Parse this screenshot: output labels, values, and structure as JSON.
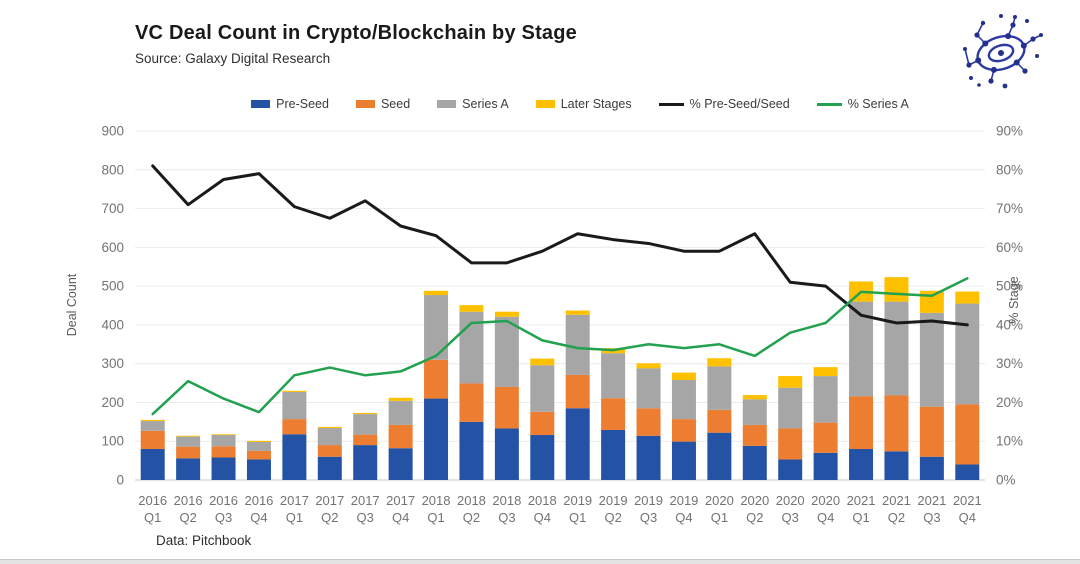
{
  "header": {
    "title": "VC Deal Count in Crypto/Blockchain by Stage",
    "source": "Source: Galaxy Digital Research"
  },
  "footer": {
    "note": "Data: Pitchbook"
  },
  "logo": {
    "icon": "network-globe-logo",
    "color": "#2b3a9e"
  },
  "legend": {
    "items": [
      {
        "label": "Pre-Seed",
        "color": "#2453a6",
        "marker": "rect"
      },
      {
        "label": "Seed",
        "color": "#ed7d31",
        "marker": "rect"
      },
      {
        "label": "Series A",
        "color": "#a6a6a6",
        "marker": "rect"
      },
      {
        "label": "Later Stages",
        "color": "#ffc000",
        "marker": "rect"
      },
      {
        "label": "% Pre-Seed/Seed",
        "color": "#1a1a1a",
        "marker": "line"
      },
      {
        "label": "% Series A",
        "color": "#22a14f",
        "marker": "line"
      }
    ]
  },
  "chart_data": {
    "type": "bar",
    "subtype": "stacked-bar-with-lines",
    "title": "VC Deal Count in Crypto/Blockchain by Stage",
    "categories": [
      "2016 Q1",
      "2016 Q2",
      "2016 Q3",
      "2016 Q4",
      "2017 Q1",
      "2017 Q2",
      "2017 Q3",
      "2017 Q4",
      "2018 Q1",
      "2018 Q2",
      "2018 Q3",
      "2018 Q4",
      "2019 Q1",
      "2019 Q2",
      "2019 Q3",
      "2019 Q4",
      "2020 Q1",
      "2020 Q2",
      "2020 Q3",
      "2020 Q4",
      "2021 Q1",
      "2021 Q2",
      "2021 Q3",
      "2021 Q4"
    ],
    "stacked_bar_series": [
      {
        "name": "Pre-Seed",
        "color": "#2453a6",
        "values": [
          80,
          56,
          58,
          53,
          118,
          60,
          90,
          82,
          210,
          150,
          133,
          116,
          185,
          129,
          114,
          99,
          122,
          88,
          53,
          70,
          80,
          74,
          60,
          40
        ]
      },
      {
        "name": "Seed",
        "color": "#ed7d31",
        "values": [
          47,
          30,
          29,
          22,
          39,
          30,
          27,
          60,
          100,
          99,
          107,
          60,
          86,
          82,
          71,
          58,
          59,
          54,
          80,
          78,
          136,
          144,
          129,
          155
        ]
      },
      {
        "name": "Series A",
        "color": "#a6a6a6",
        "values": [
          25,
          26,
          29,
          23,
          70,
          44,
          53,
          62,
          167,
          185,
          181,
          120,
          155,
          116,
          103,
          101,
          112,
          66,
          105,
          120,
          244,
          242,
          242,
          260
        ]
      },
      {
        "name": "Later Stages",
        "color": "#ffc000",
        "values": [
          3,
          2,
          2,
          3,
          3,
          3,
          3,
          8,
          11,
          17,
          13,
          17,
          11,
          13,
          13,
          19,
          21,
          11,
          30,
          23,
          52,
          63,
          57,
          31
        ]
      }
    ],
    "line_series": [
      {
        "name": "% Pre-Seed/Seed",
        "color": "#1a1a1a",
        "axis": "right",
        "width": 3,
        "values": [
          81,
          71,
          77.5,
          79,
          70.5,
          67.5,
          72,
          65.5,
          63,
          56,
          56,
          59,
          63.5,
          62,
          61,
          59,
          59,
          63.5,
          51,
          50,
          42.5,
          40.5,
          41,
          40
        ]
      },
      {
        "name": "% Series A",
        "color": "#22a14f",
        "axis": "right",
        "width": 2.5,
        "values": [
          17,
          25.5,
          21,
          17.5,
          27,
          29,
          27,
          28,
          32,
          40.5,
          41,
          36,
          34,
          33.5,
          35,
          34,
          35,
          32,
          38,
          40.5,
          48.5,
          48,
          47.5,
          52
        ]
      }
    ],
    "left_axis": {
      "label": "Deal Count",
      "min": 0,
      "max": 900,
      "ticks": [
        0,
        100,
        200,
        300,
        400,
        500,
        600,
        700,
        800,
        900
      ]
    },
    "right_axis": {
      "label": "% Stage",
      "min": 0,
      "max": 90,
      "ticks": [
        0,
        10,
        20,
        30,
        40,
        50,
        60,
        70,
        80,
        90
      ],
      "suffix": "%"
    },
    "grid": true,
    "legend_position": "top"
  }
}
